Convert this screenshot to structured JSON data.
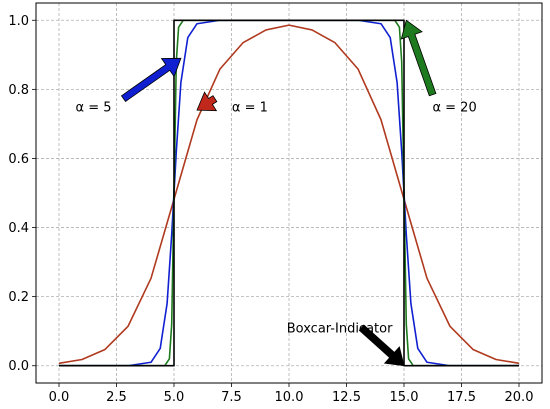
{
  "chart_data": {
    "type": "line",
    "title": "",
    "xlabel": "",
    "ylabel": "",
    "xlim": [
      -1,
      21
    ],
    "ylim": [
      -0.05,
      1.05
    ],
    "grid": true,
    "xticks": [
      0.0,
      2.5,
      5.0,
      7.5,
      10.0,
      12.5,
      15.0,
      17.5,
      20.0
    ],
    "xtick_labels": [
      "0.0",
      "2.5",
      "5.0",
      "7.5",
      "10.0",
      "12.5",
      "15.0",
      "17.5",
      "20.0"
    ],
    "yticks": [
      0.0,
      0.2,
      0.4,
      0.6,
      0.8,
      1.0
    ],
    "ytick_labels": [
      "0.0",
      "0.2",
      "0.4",
      "0.6",
      "0.8",
      "1.0"
    ],
    "series": [
      {
        "color": "#b03a1f",
        "x": [
          0,
          1,
          2,
          3,
          4,
          5,
          6,
          7,
          8,
          9,
          10,
          11,
          12,
          13,
          14,
          15,
          16,
          17,
          18,
          19,
          20
        ],
        "values": [
          0.007,
          0.018,
          0.047,
          0.114,
          0.253,
          0.482,
          0.712,
          0.859,
          0.935,
          0.972,
          0.986,
          0.972,
          0.935,
          0.859,
          0.712,
          0.482,
          0.253,
          0.114,
          0.047,
          0.018,
          0.007
        ]
      },
      {
        "color": "#1020d0",
        "x": [
          0,
          3,
          4,
          4.4,
          4.7,
          4.9,
          5.0,
          5.1,
          5.3,
          5.6,
          6.0,
          7.0,
          10.0,
          13.0,
          14.0,
          14.4,
          14.7,
          14.9,
          15.0,
          15.1,
          15.3,
          15.6,
          16.0,
          17.0,
          20.0
        ],
        "values": [
          0.0,
          0.0,
          0.01,
          0.05,
          0.18,
          0.38,
          0.5,
          0.62,
          0.82,
          0.95,
          0.99,
          1.0,
          1.0,
          1.0,
          0.99,
          0.95,
          0.82,
          0.62,
          0.5,
          0.38,
          0.18,
          0.05,
          0.01,
          0.0,
          0.0
        ]
      },
      {
        "color": "#1e7a1e",
        "x": [
          0,
          4.6,
          4.8,
          4.9,
          5.0,
          5.1,
          5.2,
          5.4,
          10.0,
          14.6,
          14.8,
          14.9,
          15.0,
          15.1,
          15.2,
          15.4,
          20.0
        ],
        "values": [
          0.0,
          0.0,
          0.02,
          0.12,
          0.5,
          0.88,
          0.98,
          1.0,
          1.0,
          1.0,
          0.98,
          0.88,
          0.5,
          0.12,
          0.02,
          0.0,
          0.0
        ]
      },
      {
        "color": "#000000",
        "x": [
          0,
          5,
          5,
          15,
          15,
          20
        ],
        "values": [
          0,
          0,
          1,
          1,
          0,
          0
        ]
      }
    ],
    "annotations": [
      {
        "label": "α = 5",
        "text_x": 1.5,
        "text_y": 0.75,
        "point_x": 5.3,
        "point_y": 0.89,
        "color": "#1020d0"
      },
      {
        "label": "α = 1",
        "text_x": 8.3,
        "text_y": 0.75,
        "point_x": 6.0,
        "point_y": 0.74,
        "color": "#c0281c"
      },
      {
        "label": "α = 20",
        "text_x": 17.2,
        "text_y": 0.75,
        "point_x": 15.1,
        "point_y": 1.0,
        "color": "#1e7a1e"
      },
      {
        "label": "Boxcar-Indicator",
        "text_x": 12.2,
        "text_y": 0.11,
        "point_x": 15.0,
        "point_y": 0.0,
        "color": "#000000"
      }
    ]
  }
}
